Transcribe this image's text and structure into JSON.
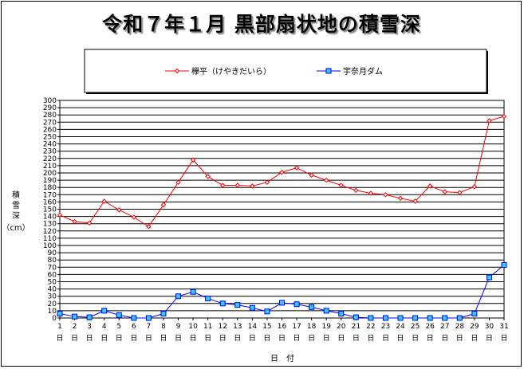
{
  "chart_data": {
    "type": "line",
    "title": "令和７年１月 黒部扇状地の積雪深",
    "xlabel": "日　付",
    "ylabel": "積雪深",
    "ylabel_unit": "（cm）",
    "ylim": [
      0,
      300
    ],
    "ytick_step": 10,
    "grid": "horizontal",
    "legend_position": "top",
    "categories": [
      "1",
      "2",
      "3",
      "4",
      "5",
      "6",
      "7",
      "8",
      "9",
      "10",
      "11",
      "12",
      "13",
      "14",
      "15",
      "16",
      "17",
      "18",
      "19",
      "20",
      "21",
      "22",
      "23",
      "24",
      "25",
      "26",
      "27",
      "28",
      "29",
      "30",
      "31"
    ],
    "category_suffix": "日",
    "series": [
      {
        "name": "欅平（けやきだいら）",
        "color": "#ff0000",
        "marker": "diamond",
        "values": [
          142,
          133,
          131,
          161,
          149,
          139,
          126,
          156,
          187,
          218,
          195,
          183,
          183,
          182,
          187,
          201,
          207,
          197,
          190,
          183,
          176,
          172,
          170,
          165,
          161,
          182,
          174,
          173,
          181,
          272,
          278
        ]
      },
      {
        "name": "宇奈月ダム",
        "color": "#0000ff",
        "marker_fill": "#33ccff",
        "marker": "square",
        "values": [
          6,
          2,
          1,
          10,
          4,
          0,
          0,
          6,
          30,
          36,
          27,
          20,
          18,
          14,
          9,
          21,
          19,
          15,
          10,
          6,
          1,
          0,
          0,
          0,
          0,
          0,
          0,
          0,
          6,
          56,
          73
        ]
      }
    ]
  }
}
